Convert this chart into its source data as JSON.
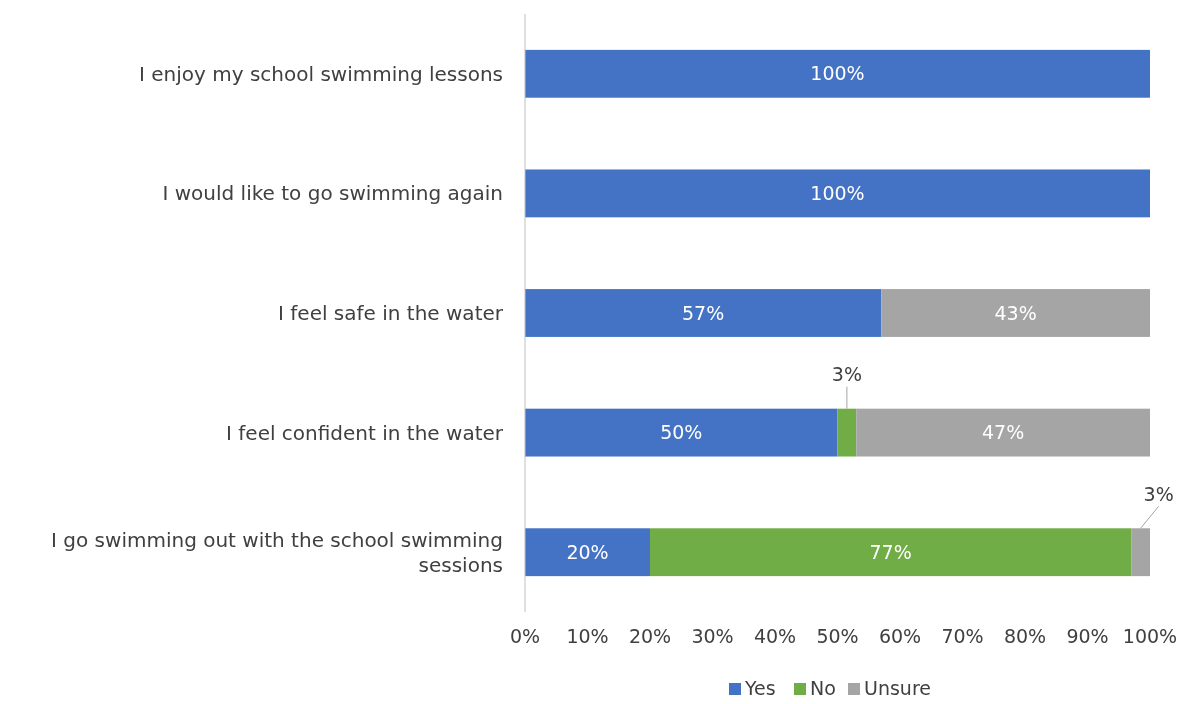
{
  "chart_data": {
    "type": "bar",
    "orientation": "horizontal",
    "stacked": true,
    "categories": [
      "I enjoy my school swimming lessons",
      "I would like to go swimming again",
      "I feel safe in the water",
      "I feel confident in the water",
      "I go swimming out with the school swimming sessions"
    ],
    "series": [
      {
        "name": "Yes",
        "color": "#4472c4",
        "values": [
          100,
          100,
          57,
          50,
          20
        ],
        "value_labels": [
          "100%",
          "100%",
          "57%",
          "50%",
          "20%"
        ]
      },
      {
        "name": "No",
        "color": "#70ad47",
        "values": [
          0,
          0,
          0,
          3,
          77
        ],
        "value_labels": [
          null,
          null,
          null,
          "3%",
          "77%"
        ]
      },
      {
        "name": "Unsure",
        "color": "#a5a5a5",
        "values": [
          0,
          0,
          43,
          47,
          3
        ],
        "value_labels": [
          null,
          null,
          "43%",
          "47%",
          "3%"
        ]
      }
    ],
    "xlim": [
      0,
      100
    ],
    "xticks": [
      {
        "value": 0,
        "label": "0%"
      },
      {
        "value": 10,
        "label": "10%"
      },
      {
        "value": 20,
        "label": "20%"
      },
      {
        "value": 30,
        "label": "30%"
      },
      {
        "value": 40,
        "label": "40%"
      },
      {
        "value": 50,
        "label": "50%"
      },
      {
        "value": 60,
        "label": "60%"
      },
      {
        "value": 70,
        "label": "70%"
      },
      {
        "value": 80,
        "label": "80%"
      },
      {
        "value": 90,
        "label": "90%"
      },
      {
        "value": 100,
        "label": "100%"
      }
    ],
    "grid": false,
    "legend": "bottom"
  }
}
